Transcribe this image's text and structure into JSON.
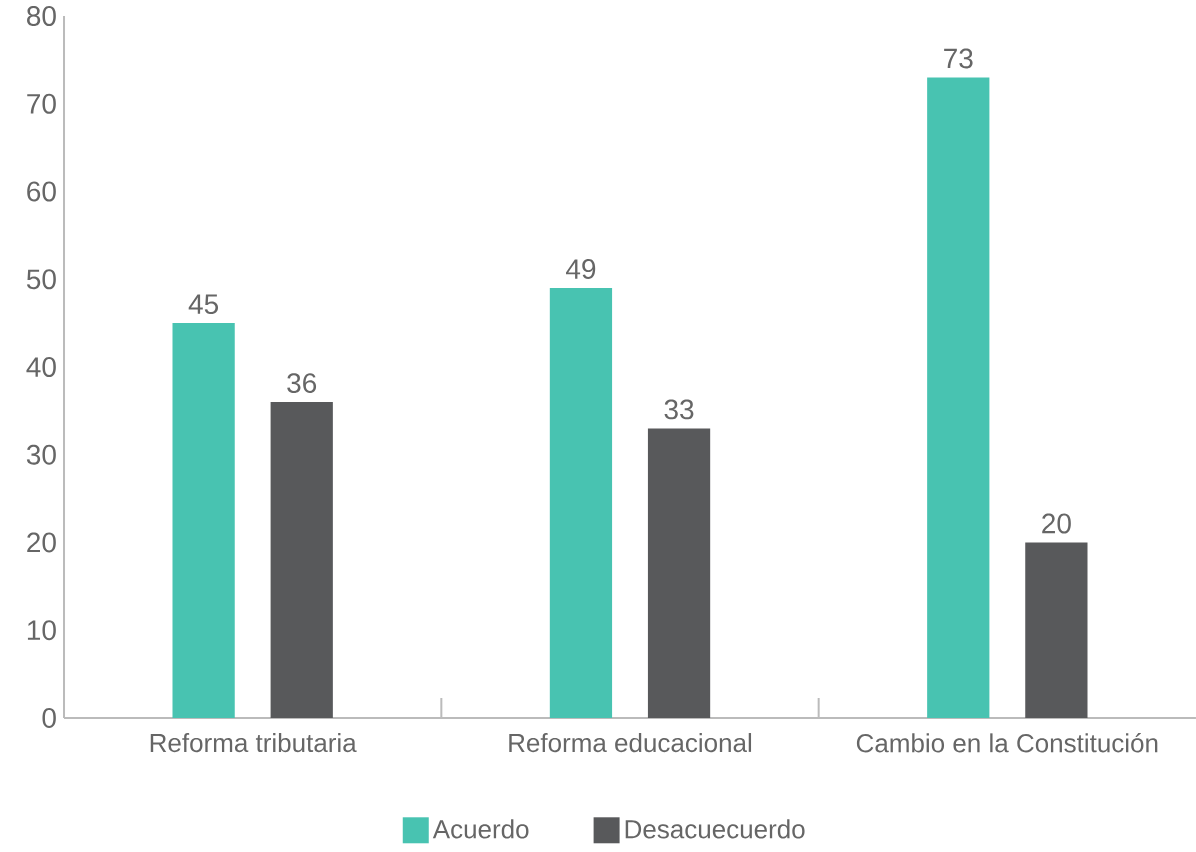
{
  "chart_data": {
    "type": "bar",
    "categories": [
      "Reforma tributaria",
      "Reforma educacional",
      "Cambio en la Constitución"
    ],
    "series": [
      {
        "name": "Acuerdo",
        "color": "#48c3b1",
        "values": [
          45,
          49,
          73
        ]
      },
      {
        "name": "Desacuecuerdo",
        "color": "#58595b",
        "values": [
          36,
          33,
          20
        ]
      }
    ],
    "ylim": [
      0,
      80
    ],
    "yticks": [
      0,
      10,
      20,
      30,
      40,
      50,
      60,
      70,
      80
    ],
    "data_labels": true,
    "legend": "bottom"
  }
}
